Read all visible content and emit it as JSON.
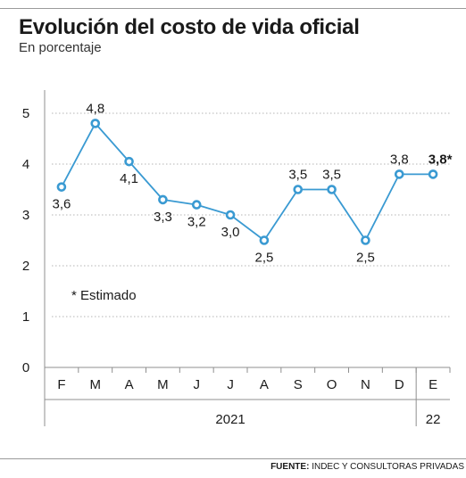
{
  "header": {
    "title": "Evolución del costo de vida oficial",
    "subtitle": "En porcentaje"
  },
  "note": "* Estimado",
  "source": {
    "label": "FUENTE:",
    "text": "INDEC Y CONSULTORAS PRIVADAS"
  },
  "colors": {
    "line": "#3a9ad2",
    "marker_fill": "#ffffff",
    "grid": "#b5b5b5",
    "text": "#1a1a1a"
  },
  "chart_data": {
    "type": "line",
    "title": "Evolución del costo de vida oficial",
    "subtitle": "En porcentaje",
    "ylim": [
      0,
      5
    ],
    "yticks": [
      0,
      1,
      2,
      3,
      4,
      5
    ],
    "grid": "horizontal dotted",
    "categories": [
      "F",
      "M",
      "A",
      "M",
      "J",
      "J",
      "A",
      "S",
      "O",
      "N",
      "D",
      "E"
    ],
    "year_groups": [
      {
        "label": "2021",
        "from": 0,
        "to": 10
      },
      {
        "label": "22",
        "from": 11,
        "to": 11
      }
    ],
    "series": [
      {
        "values": [
          3.55,
          4.8,
          4.05,
          3.3,
          3.2,
          3.0,
          2.5,
          3.5,
          3.5,
          2.5,
          3.8,
          3.8
        ],
        "labels": [
          "3,6",
          "4,8",
          "4,1",
          "3,3",
          "3,2",
          "3,0",
          "2,5",
          "3,5",
          "3,5",
          "2,5",
          "3,8",
          "3,8*"
        ],
        "label_positions": [
          "below",
          "above",
          "below",
          "below",
          "below",
          "below",
          "below",
          "above",
          "above",
          "below",
          "above",
          "above"
        ],
        "highlight_last": true
      }
    ]
  }
}
